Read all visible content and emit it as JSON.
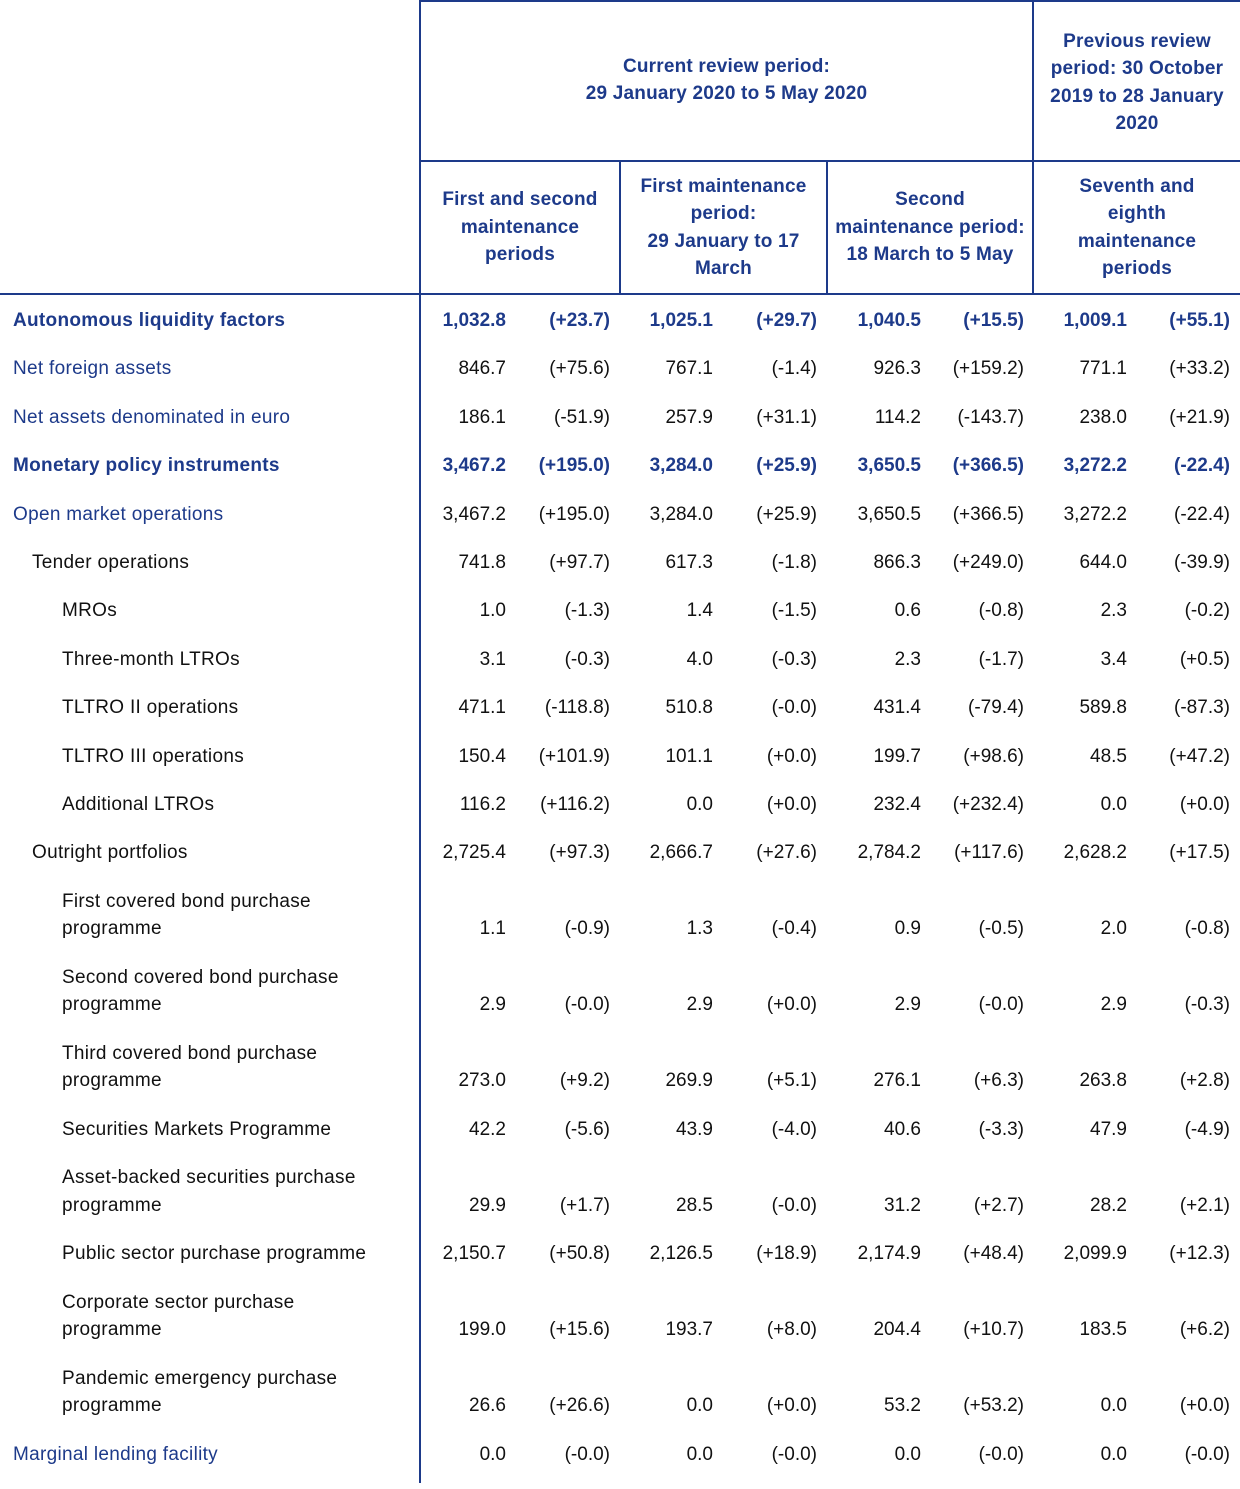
{
  "header": {
    "current_period": "Current review period:\n29 January 2020 to 5 May 2020",
    "previous_period": "Previous review period:\n30 October 2019 to 28 January 2020",
    "col1": "First and second maintenance periods",
    "col2": "First maintenance period:\n29 January to 17 March",
    "col3": "Second maintenance period:\n18 March to 5 May",
    "col4": "Seventh and eighth maintenance periods"
  },
  "rows": [
    {
      "label": "Autonomous liquidity factors",
      "style": "bold",
      "indent": 0,
      "values": [
        "1,032.8",
        "(+23.7)",
        "1,025.1",
        "(+29.7)",
        "1,040.5",
        "(+15.5)",
        "1,009.1",
        "(+55.1)"
      ]
    },
    {
      "label": "Net foreign assets",
      "style": "blue",
      "indent": 0,
      "values": [
        "846.7",
        "(+75.6)",
        "767.1",
        "(-1.4)",
        "926.3",
        "(+159.2)",
        "771.1",
        "(+33.2)"
      ]
    },
    {
      "label": "Net assets denominated in euro",
      "style": "blue",
      "indent": 0,
      "values": [
        "186.1",
        "(-51.9)",
        "257.9",
        "(+31.1)",
        "114.2",
        "(-143.7)",
        "238.0",
        "(+21.9)"
      ]
    },
    {
      "label": "Monetary policy instruments",
      "style": "bold",
      "indent": 0,
      "values": [
        "3,467.2",
        "(+195.0)",
        "3,284.0",
        "(+25.9)",
        "3,650.5",
        "(+366.5)",
        "3,272.2",
        "(-22.4)"
      ]
    },
    {
      "label": "Open market operations",
      "style": "blue",
      "indent": 0,
      "values": [
        "3,467.2",
        "(+195.0)",
        "3,284.0",
        "(+25.9)",
        "3,650.5",
        "(+366.5)",
        "3,272.2",
        "(-22.4)"
      ]
    },
    {
      "label": "Tender operations",
      "style": "plain",
      "indent": 1,
      "values": [
        "741.8",
        "(+97.7)",
        "617.3",
        "(-1.8)",
        "866.3",
        "(+249.0)",
        "644.0",
        "(-39.9)"
      ]
    },
    {
      "label": "MROs",
      "style": "plain",
      "indent": 2,
      "values": [
        "1.0",
        "(-1.3)",
        "1.4",
        "(-1.5)",
        "0.6",
        "(-0.8)",
        "2.3",
        "(-0.2)"
      ]
    },
    {
      "label": "Three-month LTROs",
      "style": "plain",
      "indent": 2,
      "values": [
        "3.1",
        "(-0.3)",
        "4.0",
        "(-0.3)",
        "2.3",
        "(-1.7)",
        "3.4",
        "(+0.5)"
      ]
    },
    {
      "label": "TLTRO II operations",
      "style": "plain",
      "indent": 2,
      "values": [
        "471.1",
        "(-118.8)",
        "510.8",
        "(-0.0)",
        "431.4",
        "(-79.4)",
        "589.8",
        "(-87.3)"
      ]
    },
    {
      "label": "TLTRO III operations",
      "style": "plain",
      "indent": 2,
      "values": [
        "150.4",
        "(+101.9)",
        "101.1",
        "(+0.0)",
        "199.7",
        "(+98.6)",
        "48.5",
        "(+47.2)"
      ]
    },
    {
      "label": "Additional LTROs",
      "style": "plain",
      "indent": 2,
      "values": [
        "116.2",
        "(+116.2)",
        "0.0",
        "(+0.0)",
        "232.4",
        "(+232.4)",
        "0.0",
        "(+0.0)"
      ]
    },
    {
      "label": "Outright portfolios",
      "style": "plain",
      "indent": 1,
      "values": [
        "2,725.4",
        "(+97.3)",
        "2,666.7",
        "(+27.6)",
        "2,784.2",
        "(+117.6)",
        "2,628.2",
        "(+17.5)"
      ]
    },
    {
      "label": "First covered bond purchase\nprogramme",
      "style": "plain",
      "indent": 2,
      "values": [
        "1.1",
        "(-0.9)",
        "1.3",
        "(-0.4)",
        "0.9",
        "(-0.5)",
        "2.0",
        "(-0.8)"
      ]
    },
    {
      "label": "Second covered bond purchase\nprogramme",
      "style": "plain",
      "indent": 2,
      "values": [
        "2.9",
        "(-0.0)",
        "2.9",
        "(+0.0)",
        "2.9",
        "(-0.0)",
        "2.9",
        "(-0.3)"
      ]
    },
    {
      "label": "Third covered bond purchase\nprogramme",
      "style": "plain",
      "indent": 2,
      "values": [
        "273.0",
        "(+9.2)",
        "269.9",
        "(+5.1)",
        "276.1",
        "(+6.3)",
        "263.8",
        "(+2.8)"
      ]
    },
    {
      "label": "Securities Markets Programme",
      "style": "plain",
      "indent": 2,
      "values": [
        "42.2",
        "(-5.6)",
        "43.9",
        "(-4.0)",
        "40.6",
        "(-3.3)",
        "47.9",
        "(-4.9)"
      ]
    },
    {
      "label": "Asset-backed securities purchase\nprogramme",
      "style": "plain",
      "indent": 2,
      "values": [
        "29.9",
        "(+1.7)",
        "28.5",
        "(-0.0)",
        "31.2",
        "(+2.7)",
        "28.2",
        "(+2.1)"
      ]
    },
    {
      "label": "Public sector purchase programme",
      "style": "plain",
      "indent": 2,
      "values": [
        "2,150.7",
        "(+50.8)",
        "2,126.5",
        "(+18.9)",
        "2,174.9",
        "(+48.4)",
        "2,099.9",
        "(+12.3)"
      ]
    },
    {
      "label": "Corporate sector purchase\nprogramme",
      "style": "plain",
      "indent": 2,
      "values": [
        "199.0",
        "(+15.6)",
        "193.7",
        "(+8.0)",
        "204.4",
        "(+10.7)",
        "183.5",
        "(+6.2)"
      ]
    },
    {
      "label": "Pandemic emergency purchase\nprogramme",
      "style": "plain",
      "indent": 2,
      "values": [
        "26.6",
        "(+26.6)",
        "0.0",
        "(+0.0)",
        "53.2",
        "(+53.2)",
        "0.0",
        "(+0.0)"
      ]
    },
    {
      "label": "Marginal lending facility",
      "style": "blue",
      "indent": 0,
      "values": [
        "0.0",
        "(-0.0)",
        "0.0",
        "(-0.0)",
        "0.0",
        "(-0.0)",
        "0.0",
        "(-0.0)"
      ]
    }
  ]
}
